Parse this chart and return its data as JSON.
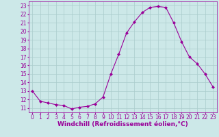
{
  "x": [
    0,
    1,
    2,
    3,
    4,
    5,
    6,
    7,
    8,
    9,
    10,
    11,
    12,
    13,
    14,
    15,
    16,
    17,
    18,
    19,
    20,
    21,
    22,
    23
  ],
  "y": [
    13.0,
    11.8,
    11.6,
    11.4,
    11.3,
    10.9,
    11.1,
    11.2,
    11.5,
    12.3,
    15.0,
    17.3,
    19.8,
    21.1,
    22.2,
    22.8,
    22.9,
    22.8,
    21.0,
    18.8,
    17.0,
    16.2,
    15.0,
    13.5
  ],
  "line_color": "#990099",
  "marker": "D",
  "marker_size": 2.0,
  "bg_color": "#cce8e8",
  "grid_color": "#aacccc",
  "xlabel": "Windchill (Refroidissement éolien,°C)",
  "xlabel_color": "#990099",
  "xlabel_fontsize": 6.5,
  "tick_color": "#990099",
  "tick_fontsize": 5.5,
  "ylim": [
    10.5,
    23.5
  ],
  "xlim": [
    -0.5,
    23.5
  ],
  "yticks": [
    11,
    12,
    13,
    14,
    15,
    16,
    17,
    18,
    19,
    20,
    21,
    22,
    23
  ],
  "xticks": [
    0,
    1,
    2,
    3,
    4,
    5,
    6,
    7,
    8,
    9,
    10,
    11,
    12,
    13,
    14,
    15,
    16,
    17,
    18,
    19,
    20,
    21,
    22,
    23
  ]
}
